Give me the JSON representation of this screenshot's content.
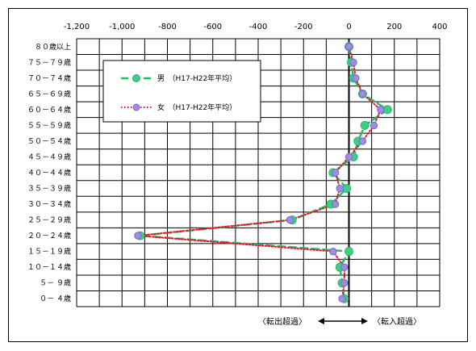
{
  "chart_data": {
    "type": "line",
    "orientation": "horizontal",
    "title": "",
    "xlabel": "",
    "ylabel": "",
    "xlim": [
      -1200,
      400
    ],
    "x_ticks": [
      "-1,200",
      "-1,000",
      "-800",
      "-600",
      "-400",
      "-200",
      "0",
      "200",
      "400"
    ],
    "x_tick_values": [
      -1200,
      -1000,
      -800,
      -600,
      -400,
      -200,
      0,
      200,
      400
    ],
    "categories": [
      "８０歳以上",
      "７５－７９歳",
      "７０－７４歳",
      "６５－６９歳",
      "６０－６４歳",
      "５５－５９歳",
      "５０－５４歳",
      "４５－４９歳",
      "４０－４４歳",
      "３５－３９歳",
      "３０－３４歳",
      "２５－２９歳",
      "２０－２４歳",
      "１５－１９歳",
      "１０－１４歳",
      "５－ ９歳",
      "０－ ４歳"
    ],
    "series": [
      {
        "name": "男　（H17-H22年平均）",
        "color": "#2bb86b",
        "values": [
          0,
          10,
          20,
          60,
          170,
          70,
          40,
          20,
          -70,
          -10,
          -80,
          -250,
          -920,
          0,
          -40,
          -30,
          -20
        ]
      },
      {
        "name": "女　（H17-H22年平均）",
        "color": "#e0182a",
        "values": [
          0,
          20,
          30,
          60,
          140,
          110,
          60,
          0,
          -60,
          -40,
          -60,
          -260,
          -930,
          -70,
          -20,
          -20,
          -30
        ]
      }
    ],
    "legend_position": "upper-left",
    "grid": true,
    "annotations": {
      "left": "〈転出超過〉",
      "right": "〈転入超過〉",
      "arrow": "double-headed"
    }
  }
}
